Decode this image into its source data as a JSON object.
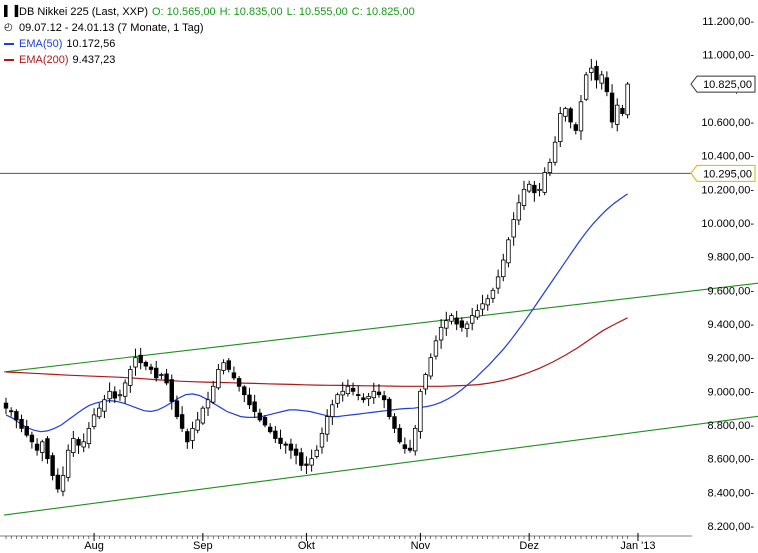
{
  "header": {
    "title": "DB Nikkei 225 (Last, XXP)",
    "open": "O: 10.565,00",
    "high": "H: 10.835,00",
    "low": "L: 10.555,00",
    "close": "C: 10.825,00",
    "period": "09.07.12 - 24.01.13 (7 Monate, 1 Tag)",
    "ema50_label": "EMA(50)",
    "ema50_value": "10.172,56",
    "ema200_label": "EMA(200)",
    "ema200_value": "9.437,23"
  },
  "colors": {
    "ohlc_green": "#1a9a1a",
    "ema50": "#1f3fd8",
    "ema200": "#b01818",
    "trendline": "#1f8f1f",
    "candle": "#000000",
    "price_badge_border": "#e0b400",
    "hline": "#555555"
  },
  "chart_data": {
    "type": "candlestick",
    "ylim": [
      8200,
      11300
    ],
    "y_ticks": [
      8200,
      8400,
      8600,
      8800,
      9000,
      9200,
      9400,
      9600,
      9800,
      10000,
      10200,
      10400,
      10600,
      10800,
      11000,
      11200
    ],
    "y_tick_labels": [
      "8.200,00-",
      "8.400,00-",
      "8.600,00-",
      "8.800,00-",
      "9.000,00-",
      "9.200,00-",
      "9.400,00-",
      "9.600,00-",
      "9.800,00-",
      "10.000,00-",
      "10.200,00-",
      "10.400,00-",
      "10.600,00-",
      "10.800,00-",
      "11.000,00-",
      "11.200,00-"
    ],
    "x_labels": [
      "Aug",
      "Sep",
      "Okt",
      "Nov",
      "Dez",
      "Jan '13"
    ],
    "x_label_bars": [
      17,
      38,
      58,
      80,
      101,
      122
    ],
    "last_price_label": "10.825,00",
    "last_price": 10825,
    "hline_label": "10.295,00",
    "hline_value": 10295,
    "trendline_upper": {
      "from": [
        0,
        9115
      ],
      "to": [
        160,
        9695
      ]
    },
    "trendline_lower": {
      "from": [
        0,
        8265
      ],
      "to": [
        160,
        8910
      ]
    },
    "close": [
      8900,
      8880,
      8830,
      8780,
      8740,
      8700,
      8650,
      8700,
      8600,
      8500,
      8420,
      8500,
      8650,
      8720,
      8680,
      8700,
      8780,
      8860,
      8900,
      8950,
      9000,
      8960,
      8980,
      9050,
      9130,
      9200,
      9170,
      9150,
      9130,
      9080,
      9100,
      9050,
      8940,
      8850,
      8780,
      8700,
      8780,
      8830,
      8900,
      8950,
      9030,
      9130,
      9170,
      9130,
      9080,
      9030,
      8980,
      8920,
      8880,
      8830,
      8800,
      8760,
      8720,
      8690,
      8680,
      8650,
      8620,
      8560,
      8560,
      8600,
      8650,
      8750,
      8850,
      8920,
      8980,
      9000,
      9030,
      9000,
      8980,
      8950,
      8970,
      9000,
      8980,
      8950,
      8850,
      8780,
      8700,
      8660,
      8650,
      8780,
      9000,
      9100,
      9200,
      9300,
      9380,
      9420,
      9450,
      9400,
      9380,
      9400,
      9450,
      9480,
      9520,
      9550,
      9600,
      9680,
      9780,
      9900,
      10020,
      10120,
      10200,
      10230,
      10180,
      10200,
      10300,
      10360,
      10480,
      10650,
      10680,
      10600,
      10550,
      10720,
      10880,
      10920,
      10850,
      10880,
      10780,
      10600,
      10700,
      10650,
      10825
    ],
    "ema50": [
      8860,
      8840,
      8810,
      8785,
      8770,
      8760,
      8765,
      8780,
      8800,
      8830,
      8860,
      8890,
      8915,
      8930,
      8940,
      8945,
      8940,
      8930,
      8915,
      8900,
      8885,
      8880,
      8890,
      8910,
      8935,
      8960,
      8980,
      8985,
      8975,
      8955,
      8930,
      8905,
      8880,
      8865,
      8850,
      8845,
      8845,
      8850,
      8860,
      8870,
      8880,
      8890,
      8890,
      8885,
      8880,
      8870,
      8860,
      8850,
      8850,
      8855,
      8860,
      8865,
      8870,
      8875,
      8880,
      8885,
      8890,
      8895,
      8898,
      8900,
      8905,
      8910,
      8920,
      8935,
      8955,
      8980,
      9010,
      9045,
      9080,
      9120,
      9160,
      9205,
      9250,
      9300,
      9355,
      9410,
      9470,
      9530,
      9590,
      9650,
      9710,
      9770,
      9830,
      9890,
      9945,
      9995,
      10040,
      10080,
      10115,
      10145,
      10173
    ],
    "ema50_start_bar": 0,
    "ema200": [
      9115,
      9112,
      9108,
      9104,
      9100,
      9096,
      9093,
      9090,
      9087,
      9084,
      9080,
      9075,
      9070,
      9065,
      9060,
      9057,
      9055,
      9053,
      9051,
      9049,
      9047,
      9045,
      9043,
      9041,
      9039,
      9037,
      9036,
      9035,
      9034,
      9033,
      9032,
      9031,
      9030,
      9030,
      9030,
      9030,
      9032,
      9035,
      9040,
      9050,
      9065,
      9085,
      9110,
      9140,
      9175,
      9215,
      9260,
      9310,
      9360,
      9400,
      9437
    ]
  }
}
